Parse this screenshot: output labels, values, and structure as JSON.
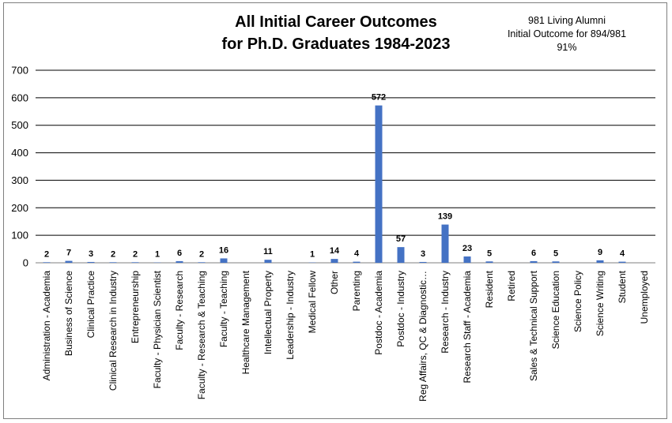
{
  "chart_data": {
    "type": "bar",
    "title_line1": "All Initial Career Outcomes",
    "title_line2": "for Ph.D. Graduates 1984-2023",
    "note_line1": "981 Living Alumni",
    "note_line2": "Initial Outcome for 894/981",
    "note_line3": "91%",
    "ylim": [
      0,
      700
    ],
    "yticks": [
      0,
      100,
      200,
      300,
      400,
      500,
      600,
      700
    ],
    "grid": true,
    "bar_color": "#4472c4",
    "categories": [
      "Administration - Academia",
      "Business of Science",
      "Clinical Practice",
      "Clinical Research in Industry",
      "Entrepreneurship",
      "Faculty - Physician Scientist",
      "Faculty - Research",
      "Faculty - Research & Teaching",
      "Faculty - Teaching",
      "Healthcare Management",
      "Intellectual Property",
      "Leadership - Industry",
      "Medical Fellow",
      "Other",
      "Parenting",
      "Postdoc - Academia",
      "Postdoc - Industry",
      "Reg Affairs, QC & Diagnostic…",
      "Research - Industry",
      "Research Staff - Academia",
      "Resident",
      "Retired",
      "Sales & Technical Support",
      "Science Education",
      "Science Policy",
      "Science Writing",
      "Student",
      "Unemployed"
    ],
    "values": [
      2,
      7,
      3,
      2,
      2,
      1,
      6,
      2,
      16,
      null,
      11,
      null,
      1,
      14,
      4,
      572,
      57,
      3,
      139,
      23,
      5,
      null,
      6,
      5,
      null,
      9,
      4,
      null
    ]
  }
}
